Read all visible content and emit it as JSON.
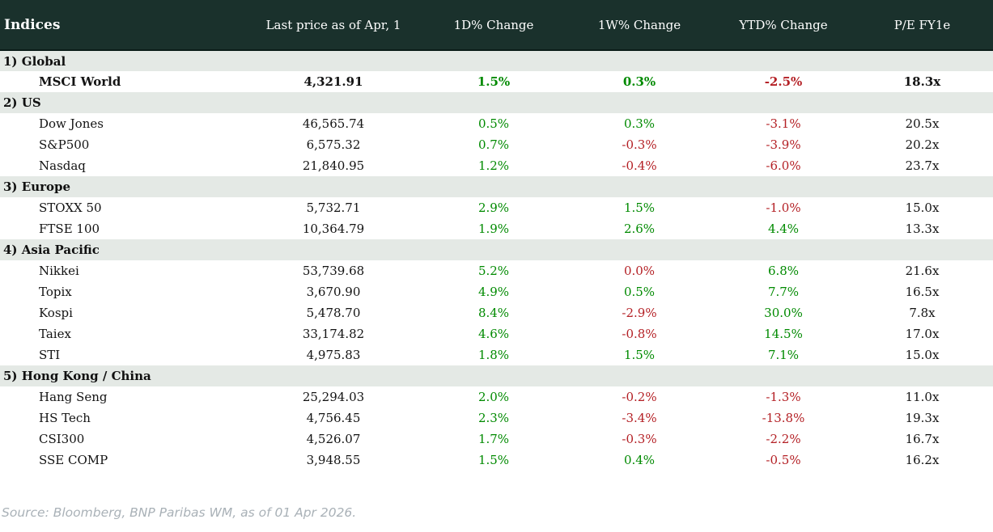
{
  "chart_data": {
    "type": "table",
    "title": "Indices",
    "columns": [
      "Indices",
      "Last price as of Apr, 1",
      "1D% Change",
      "1W% Change",
      "YTD% Change",
      "P/E FY1e"
    ],
    "sections": [
      {
        "label": "1) Global",
        "rows": [
          {
            "name": "MSCI World",
            "bold": true,
            "price": "4,321.91",
            "d1": "1.5%",
            "w1": "0.3%",
            "ytd": "-2.5%",
            "pe": "18.3x"
          }
        ]
      },
      {
        "label": "2) US",
        "rows": [
          {
            "name": "Dow Jones",
            "price": "46,565.74",
            "d1": "0.5%",
            "w1": "0.3%",
            "ytd": "-3.1%",
            "pe": "20.5x"
          },
          {
            "name": "S&P500",
            "price": "6,575.32",
            "d1": "0.7%",
            "w1": "-0.3%",
            "ytd": "-3.9%",
            "pe": "20.2x"
          },
          {
            "name": "Nasdaq",
            "price": "21,840.95",
            "d1": "1.2%",
            "w1": "-0.4%",
            "ytd": "-6.0%",
            "pe": "23.7x"
          }
        ]
      },
      {
        "label": "3) Europe",
        "rows": [
          {
            "name": "STOXX 50",
            "price": "5,732.71",
            "d1": "2.9%",
            "w1": "1.5%",
            "ytd": "-1.0%",
            "pe": "15.0x"
          },
          {
            "name": "FTSE 100",
            "price": "10,364.79",
            "d1": "1.9%",
            "w1": "2.6%",
            "ytd": "4.4%",
            "pe": "13.3x"
          }
        ]
      },
      {
        "label": "4) Asia Pacific",
        "rows": [
          {
            "name": "Nikkei",
            "price": "53,739.68",
            "d1": "5.2%",
            "w1": "0.0%",
            "ytd": "6.8%",
            "pe": "21.6x",
            "color_overrides": {
              "w1": "negative"
            }
          },
          {
            "name": "Topix",
            "price": "3,670.90",
            "d1": "4.9%",
            "w1": "0.5%",
            "ytd": "7.7%",
            "pe": "16.5x"
          },
          {
            "name": "Kospi",
            "price": "5,478.70",
            "d1": "8.4%",
            "w1": "-2.9%",
            "ytd": "30.0%",
            "pe": "7.8x"
          },
          {
            "name": "Taiex",
            "price": "33,174.82",
            "d1": "4.6%",
            "w1": "-0.8%",
            "ytd": "14.5%",
            "pe": "17.0x"
          },
          {
            "name": "STI",
            "price": "4,975.83",
            "d1": "1.8%",
            "w1": "1.5%",
            "ytd": "7.1%",
            "pe": "15.0x"
          }
        ]
      },
      {
        "label": "5) Hong Kong / China",
        "rows": [
          {
            "name": "Hang Seng",
            "price": "25,294.03",
            "d1": "2.0%",
            "w1": "-0.2%",
            "ytd": "-1.3%",
            "pe": "11.0x"
          },
          {
            "name": "HS Tech",
            "price": "4,756.45",
            "d1": "2.3%",
            "w1": "-3.4%",
            "ytd": "-13.8%",
            "pe": "19.3x"
          },
          {
            "name": "CSI300",
            "price": "4,526.07",
            "d1": "1.7%",
            "w1": "-0.3%",
            "ytd": "-2.2%",
            "pe": "16.7x"
          },
          {
            "name": "SSE COMP",
            "price": "3,948.55",
            "d1": "1.5%",
            "w1": "0.4%",
            "ytd": "-0.5%",
            "pe": "16.2x"
          }
        ]
      }
    ]
  },
  "colors": {
    "header_bg": "#1a312c",
    "section_bg": "#e4e9e5",
    "positive": "#008a00",
    "negative": "#b42025"
  },
  "footer": {
    "source": "Source: Bloomberg, BNP Paribas WM, as of 01 Apr 2026."
  }
}
